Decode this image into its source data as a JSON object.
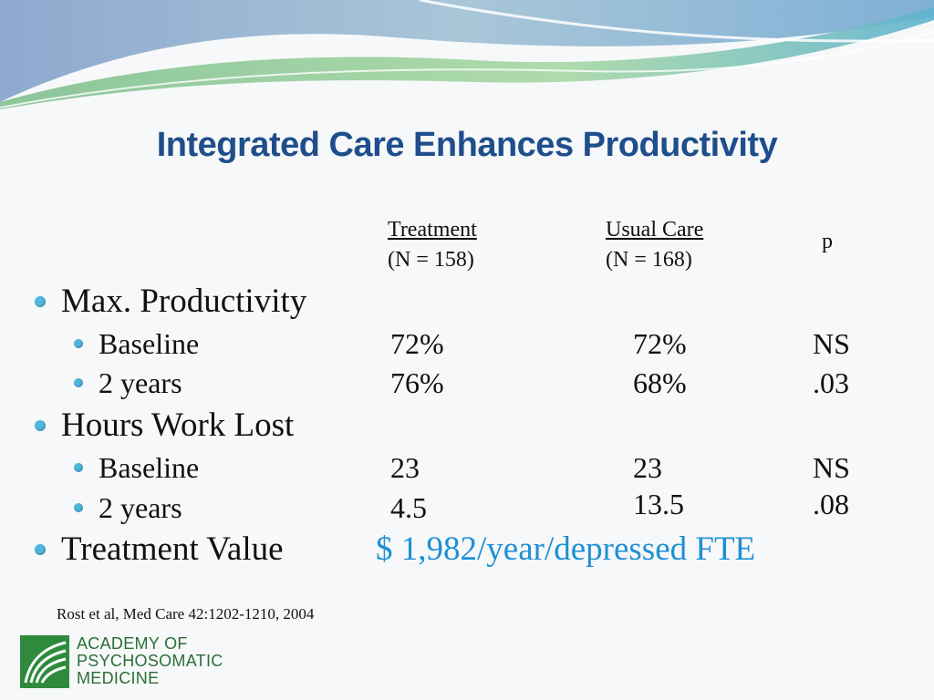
{
  "slide": {
    "title": "Integrated Care Enhances Productivity",
    "columns": [
      {
        "heading": "Treatment",
        "n": "(N = 158)"
      },
      {
        "heading": "Usual Care",
        "n": "(N = 168)"
      },
      {
        "heading": "p"
      }
    ],
    "sections": [
      {
        "label": "Max. Productivity",
        "rows": [
          {
            "label": "Baseline",
            "treatment": "72%",
            "usual": "72%",
            "p": "NS"
          },
          {
            "label": "2 years",
            "treatment": "76%",
            "usual": "68%",
            "p": ".03"
          }
        ]
      },
      {
        "label": "Hours Work Lost",
        "rows": [
          {
            "label": "Baseline",
            "treatment": "23",
            "usual": "23",
            "p": "NS"
          },
          {
            "label": "2 years",
            "treatment": "4.5",
            "usual": "13.5",
            "p": ".08"
          }
        ]
      },
      {
        "label": "Treatment Value",
        "value": "$ 1,982/year/depressed FTE"
      }
    ],
    "citation": "Rost et al, Med Care 42:1202-1210, 2004",
    "logo": {
      "lines": [
        "ACADEMY OF",
        "PSYCHOSOMATIC",
        "MEDICINE"
      ]
    }
  },
  "colors": {
    "title": "#1f4e8c",
    "bullet": "#4fb7dc",
    "value": "#1e90d6",
    "logo_green": "#2e8b3e"
  }
}
